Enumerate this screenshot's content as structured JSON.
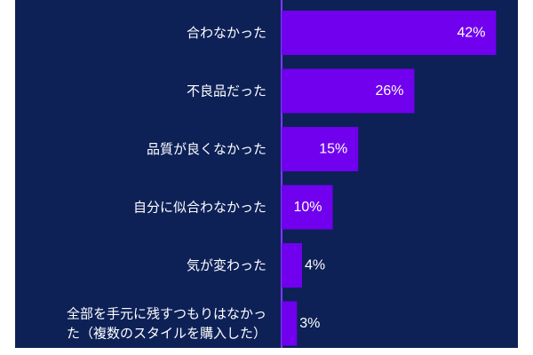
{
  "chart_data": {
    "type": "bar",
    "orientation": "horizontal",
    "title": "",
    "xlabel": "",
    "ylabel": "",
    "xlim": [
      0,
      50
    ],
    "grid": false,
    "legend": "none",
    "categories": [
      [
        "合わなかった"
      ],
      [
        "不良品だった"
      ],
      [
        "品質が良くなかった"
      ],
      [
        "自分に似合わなかった"
      ],
      [
        "気が変わった"
      ],
      [
        "全部を手元に残すつもりはなかっ",
        "た（複数のスタイルを購入した）"
      ]
    ],
    "values": [
      42,
      26,
      15,
      10,
      4,
      3
    ],
    "value_labels": [
      "42%",
      "26%",
      "15%",
      "10%",
      "4%",
      "3%"
    ],
    "colors": {
      "background": "#0d2157",
      "bar": "#7000ee",
      "baseline": "#7c3cff",
      "text": "#ffffff"
    }
  }
}
